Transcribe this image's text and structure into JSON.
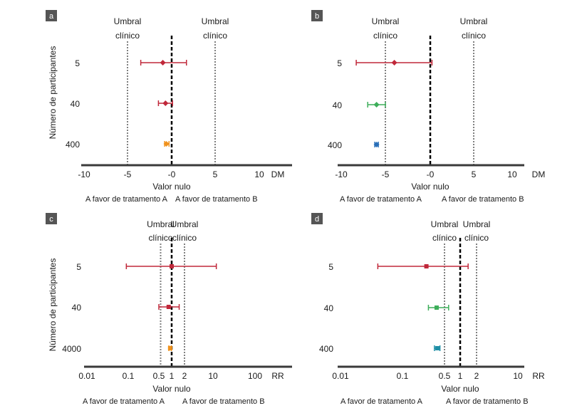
{
  "chart_data": [
    {
      "panel": "a",
      "type": "forest",
      "scale": "linear",
      "measure": "DM",
      "null_label": "Valor nulo",
      "null_value": 0,
      "xlim": [
        -10,
        14
      ],
      "ticks": [
        "-10",
        "-5",
        "-0",
        "5",
        "10"
      ],
      "tick_values": [
        -10,
        -5,
        0,
        5,
        10
      ],
      "thresholds": [
        {
          "value": -5,
          "label_line1": "Umbral",
          "label_line2": "clínico"
        },
        {
          "value": 5,
          "label_line1": "Umbral",
          "label_line2": "clínico"
        }
      ],
      "favor_left": "A favor de tratamento A",
      "favor_right": "A favor de tratamento B",
      "rows": [
        {
          "label": "5",
          "estimate": -1,
          "lower": -3.5,
          "upper": 1.7,
          "color": "#c0283a",
          "marker": "diamond"
        },
        {
          "label": "40",
          "estimate": -0.7,
          "lower": -1.5,
          "upper": 0.1,
          "color": "#c0283a",
          "marker": "diamond"
        },
        {
          "label": "400",
          "estimate": -0.6,
          "lower": -0.8,
          "upper": -0.3,
          "color": "#f0921d",
          "marker": "diamond"
        }
      ]
    },
    {
      "panel": "b",
      "type": "forest",
      "scale": "linear",
      "measure": "DM",
      "null_label": "Valor nulo",
      "null_value": 0,
      "xlim": [
        -10,
        14
      ],
      "ticks": [
        "-10",
        "-5",
        "-0",
        "5",
        "10"
      ],
      "tick_values": [
        -10,
        -5,
        0,
        5,
        10
      ],
      "thresholds": [
        {
          "value": -5,
          "label_line1": "Umbral",
          "label_line2": "clínico"
        },
        {
          "value": 5,
          "label_line1": "Umbral",
          "label_line2": "clínico"
        }
      ],
      "favor_left": "A favor de tratamento A",
      "favor_right": "A favor de tratamento B",
      "rows": [
        {
          "label": "5",
          "estimate": -4,
          "lower": -8.3,
          "upper": 0.2,
          "color": "#c0283a",
          "marker": "diamond"
        },
        {
          "label": "40",
          "estimate": -6,
          "lower": -7,
          "upper": -5,
          "color": "#3dae5a",
          "marker": "diamond"
        },
        {
          "label": "400",
          "estimate": -6,
          "lower": -6.2,
          "upper": -5.8,
          "color": "#2a6fb8",
          "marker": "diamond"
        }
      ]
    },
    {
      "panel": "c",
      "type": "forest",
      "scale": "log",
      "measure": "RR",
      "null_label": "Valor nulo",
      "null_value": 1,
      "xlim": [
        0.01,
        1000
      ],
      "ticks": [
        "0.01",
        "0.1",
        "0.5",
        "1",
        "2",
        "10",
        "100"
      ],
      "tick_values": [
        0.01,
        0.1,
        0.5,
        1,
        2,
        10,
        100
      ],
      "thresholds": [
        {
          "value": 0.55,
          "label_line1": "Umbral",
          "label_line2": "clínico"
        },
        {
          "value": 2,
          "label_line1": "Umbral",
          "label_line2": "clínico"
        }
      ],
      "favor_left": "A favor de tratamento A",
      "favor_right": "A favor de tratamento B",
      "rows": [
        {
          "label": "5",
          "estimate": 1,
          "lower": 0.09,
          "upper": 12,
          "color": "#c0283a",
          "marker": "square"
        },
        {
          "label": "40",
          "estimate": 0.85,
          "lower": 0.5,
          "upper": 1.5,
          "color": "#c0283a",
          "marker": "square"
        },
        {
          "label": "4000",
          "estimate": 0.92,
          "lower": 0.86,
          "upper": 0.98,
          "color": "#f0921d",
          "marker": "square"
        }
      ]
    },
    {
      "panel": "d",
      "type": "forest",
      "scale": "log",
      "measure": "RR",
      "null_label": "Valor nulo",
      "null_value": 1,
      "xlim": [
        0.01,
        10
      ],
      "ticks": [
        "0.01",
        "0.1",
        "0.5",
        "1",
        "2",
        "10"
      ],
      "tick_values": [
        0.01,
        0.1,
        0.5,
        1,
        2,
        10
      ],
      "thresholds": [
        {
          "value": 0.5,
          "label_line1": "Umbral",
          "label_line2": "clínico"
        },
        {
          "value": 2,
          "label_line1": "Umbral",
          "label_line2": "clínico"
        }
      ],
      "favor_left": "A favor de tratamento A",
      "favor_right": "A favor de tratamento B",
      "rows": [
        {
          "label": "5",
          "estimate": 0.25,
          "lower": 0.04,
          "upper": 1.4,
          "color": "#c0283a",
          "marker": "square"
        },
        {
          "label": "40",
          "estimate": 0.37,
          "lower": 0.27,
          "upper": 0.6,
          "color": "#3dae5a",
          "marker": "square"
        },
        {
          "label": "400",
          "estimate": 0.38,
          "lower": 0.34,
          "upper": 0.42,
          "color": "#1f8fa6",
          "marker": "square"
        }
      ]
    }
  ],
  "y_axis_label": "Número de participantes",
  "colors": {
    "axis": "#3a3a3a",
    "threshold": "#808080",
    "null_line": "#000000",
    "tag_bg": "#555555"
  }
}
